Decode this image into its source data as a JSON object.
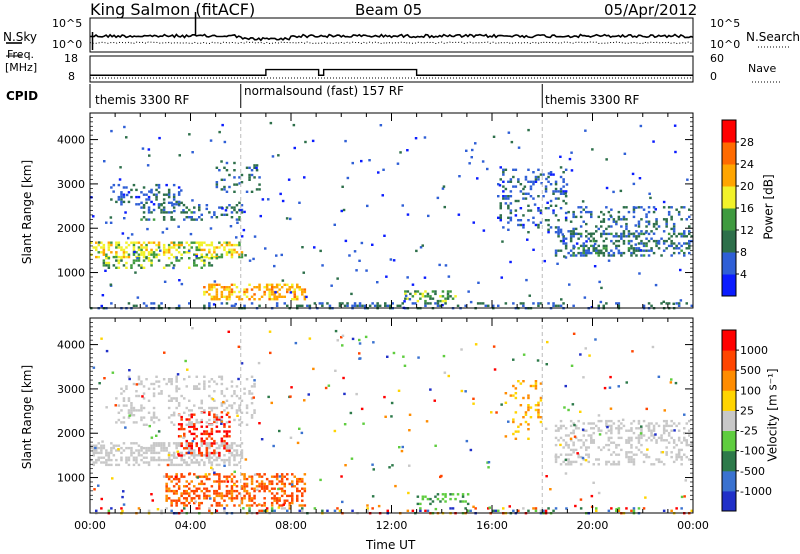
{
  "header": {
    "station": "King Salmon (fitACF)",
    "beam": "Beam 05",
    "date": "05/Apr/2012"
  },
  "status_panels": {
    "nsky_label": "N.Sky",
    "nsearch_label": "N.Search",
    "noise_ticks": [
      "10^5",
      "10^0"
    ],
    "freq_label_line1": "Freq.",
    "freq_label_line2": "[MHz]",
    "freq_ticks": [
      "18",
      "8"
    ],
    "nave_label": "Nave",
    "nave_ticks": [
      "60",
      "0"
    ],
    "cpid_label": "CPID",
    "cpid_segments": [
      {
        "label": "themis 3300 RF",
        "start": 0,
        "end": 6
      },
      {
        "label": "normalsound (fast) 157 RF",
        "start": 6,
        "end": 18
      },
      {
        "label": "themis 3300 RF",
        "start": 18,
        "end": 24
      }
    ],
    "freq_steps": [
      {
        "start": 0,
        "end": 7,
        "mhz": 10.6
      },
      {
        "start": 7,
        "end": 9.1,
        "mhz": 12.8
      },
      {
        "start": 9.1,
        "end": 9.3,
        "mhz": 10.6
      },
      {
        "start": 9.3,
        "end": 13.0,
        "mhz": 12.8
      },
      {
        "start": 13.0,
        "end": 24,
        "mhz": 10.6
      }
    ]
  },
  "chart_data": [
    {
      "type": "heatmap",
      "panel": "power",
      "ylabel": "Slant Range [km]",
      "xlabel": "",
      "xlim": [
        0,
        24
      ],
      "ylim": [
        200,
        4600
      ],
      "yticks": [
        "1000",
        "2000",
        "3000",
        "4000"
      ],
      "colorbar_label": "Power [dB]",
      "colorbar_ticks": [
        "4",
        "8",
        "12",
        "16",
        "20",
        "24",
        "28"
      ],
      "colorbar_range": [
        0,
        32
      ],
      "colors": [
        "#0b1cff",
        "#2f5fd6",
        "#2d6f4a",
        "#3f9a3f",
        "#f2f22a",
        "#ffa500",
        "#ff6a00",
        "#ff0000"
      ],
      "regions": [
        {
          "t0": 0.0,
          "t1": 6.0,
          "r0": 1350,
          "r1": 1700,
          "density": 0.9,
          "value": 18
        },
        {
          "t0": 0.5,
          "t1": 5.0,
          "r0": 1100,
          "r1": 1350,
          "density": 0.55,
          "value": 14
        },
        {
          "t0": 2.0,
          "t1": 6.0,
          "r0": 2200,
          "r1": 2600,
          "density": 0.45,
          "value": 9
        },
        {
          "t0": 0.8,
          "t1": 3.5,
          "r0": 2550,
          "r1": 3000,
          "density": 0.45,
          "value": 7
        },
        {
          "t0": 5.0,
          "t1": 6.8,
          "r0": 2800,
          "r1": 3500,
          "density": 0.4,
          "value": 8
        },
        {
          "t0": 4.5,
          "t1": 8.5,
          "r0": 380,
          "r1": 750,
          "density": 0.9,
          "value": 21
        },
        {
          "t0": 16.2,
          "t1": 19.0,
          "r0": 1900,
          "r1": 3400,
          "density": 0.35,
          "value": 7
        },
        {
          "t0": 18.5,
          "t1": 24.0,
          "r0": 1400,
          "r1": 1900,
          "density": 0.7,
          "value": 9
        },
        {
          "t0": 19.0,
          "t1": 24.0,
          "r0": 1900,
          "r1": 2500,
          "density": 0.4,
          "value": 8
        },
        {
          "t0": 12.5,
          "t1": 14.5,
          "r0": 380,
          "r1": 600,
          "density": 0.6,
          "value": 14
        },
        {
          "t0": 0.0,
          "t1": 24.0,
          "r0": 200,
          "r1": 330,
          "density": 0.45,
          "value": 8
        }
      ]
    },
    {
      "type": "heatmap",
      "panel": "velocity",
      "ylabel": "Slant Range [km]",
      "xlabel": "Time UT",
      "xlim": [
        0,
        24
      ],
      "ylim": [
        200,
        4600
      ],
      "yticks": [
        "1000",
        "2000",
        "3000",
        "4000"
      ],
      "xticks": [
        "00:00",
        "04:00",
        "08:00",
        "12:00",
        "16:00",
        "20:00",
        "00:00"
      ],
      "colorbar_label": "Velocity [m s⁻¹]",
      "colorbar_ticks": [
        "1000",
        "500",
        "100",
        "25",
        "-25",
        "-100",
        "-500",
        "-1000"
      ],
      "colors": [
        "#2030c8",
        "#3a72d0",
        "#2d7a4a",
        "#5fcd3f",
        "#c8c8c8",
        "#ffd400",
        "#ff8c00",
        "#ff4500",
        "#ff0000"
      ],
      "regions": [
        {
          "t0": 0.0,
          "t1": 6.0,
          "r0": 1300,
          "r1": 1800,
          "density": 0.9,
          "value": "gray"
        },
        {
          "t0": 3.5,
          "t1": 5.5,
          "r0": 1500,
          "r1": 2500,
          "density": 0.5,
          "value": "red"
        },
        {
          "t0": 3.0,
          "t1": 8.5,
          "r0": 380,
          "r1": 1100,
          "density": 0.8,
          "value": "orange"
        },
        {
          "t0": 1.0,
          "t1": 6.5,
          "r0": 2200,
          "r1": 3300,
          "density": 0.35,
          "value": "gray"
        },
        {
          "t0": 13.0,
          "t1": 15.0,
          "r0": 380,
          "r1": 650,
          "density": 0.55,
          "value": "green"
        },
        {
          "t0": 18.5,
          "t1": 24.0,
          "r0": 1300,
          "r1": 2300,
          "density": 0.55,
          "value": "gray"
        },
        {
          "t0": 16.5,
          "t1": 18.0,
          "r0": 1900,
          "r1": 3200,
          "density": 0.25,
          "value": "yellow"
        },
        {
          "t0": 0.0,
          "t1": 24.0,
          "r0": 200,
          "r1": 330,
          "density": 0.35,
          "value": "mixed"
        }
      ]
    }
  ]
}
